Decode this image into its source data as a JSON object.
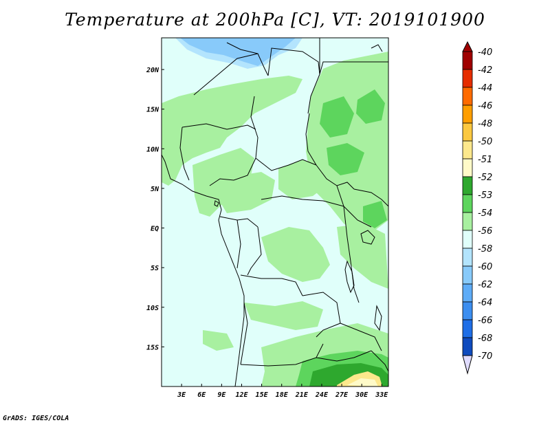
{
  "title": "Temperature at 200hPa [C], VT: 2019101900",
  "footer": "GrADS: IGES/COLA",
  "chart_data": {
    "type": "heatmap",
    "title": "Temperature at 200hPa [C], VT: 2019101900",
    "variable": "Temperature",
    "level": "200hPa",
    "units": "C",
    "valid_time": "2019101900",
    "lon_range": [
      0,
      34
    ],
    "lat_range": [
      -20,
      24
    ],
    "x_ticks": [
      {
        "lon": 3,
        "label": "3E"
      },
      {
        "lon": 6,
        "label": "6E"
      },
      {
        "lon": 9,
        "label": "9E"
      },
      {
        "lon": 12,
        "label": "12E"
      },
      {
        "lon": 15,
        "label": "15E"
      },
      {
        "lon": 18,
        "label": "18E"
      },
      {
        "lon": 21,
        "label": "21E"
      },
      {
        "lon": 24,
        "label": "24E"
      },
      {
        "lon": 27,
        "label": "27E"
      },
      {
        "lon": 30,
        "label": "30E"
      },
      {
        "lon": 33,
        "label": "33E"
      }
    ],
    "y_ticks": [
      {
        "lat": 20,
        "label": "20N"
      },
      {
        "lat": 15,
        "label": "15N"
      },
      {
        "lat": 10,
        "label": "10N"
      },
      {
        "lat": 5,
        "label": "5N"
      },
      {
        "lat": 0,
        "label": "EQ"
      },
      {
        "lat": -5,
        "label": "5S"
      },
      {
        "lat": -10,
        "label": "10S"
      },
      {
        "lat": -15,
        "label": "15S"
      }
    ],
    "colorbar": [
      {
        "label": "-40",
        "color": "#a00000"
      },
      {
        "label": "-42",
        "color": "#e62d00"
      },
      {
        "label": "-44",
        "color": "#ff6b00"
      },
      {
        "label": "-46",
        "color": "#ff9e00"
      },
      {
        "label": "-48",
        "color": "#fbc840"
      },
      {
        "label": "-50",
        "color": "#fde88c"
      },
      {
        "label": "-51",
        "color": "#fffac8"
      },
      {
        "label": "-52",
        "color": "#2ea82e"
      },
      {
        "label": "-53",
        "color": "#5dd55d"
      },
      {
        "label": "-54",
        "color": "#a8f0a0"
      },
      {
        "label": "-56",
        "color": "#e0fffa"
      },
      {
        "label": "-58",
        "color": "#b3e4fd"
      },
      {
        "label": "-60",
        "color": "#88cafa"
      },
      {
        "label": "-62",
        "color": "#5eacf7"
      },
      {
        "label": "-64",
        "color": "#3c8ef0"
      },
      {
        "label": "-66",
        "color": "#1e6ee6"
      },
      {
        "label": "-68",
        "color": "#0f4bbe"
      },
      {
        "label": "-70",
        "color": "#0a2a8c"
      }
    ],
    "colorbar_bottom_color": "#e0dcff",
    "fields": [
      {
        "name": "background",
        "label": "-56",
        "color": "#e0fffa"
      },
      {
        "name": "main",
        "label": "-54",
        "color": "#a8f0a0"
      },
      {
        "name": "warm-core",
        "label": "-53",
        "color": "#5dd55d"
      },
      {
        "name": "warmest",
        "label": "-52",
        "color": "#2ea82e"
      },
      {
        "name": "hot-spot",
        "label": "-50",
        "color": "#fde88c"
      },
      {
        "name": "cold-north",
        "label": "-58",
        "color": "#b3e4fd"
      },
      {
        "name": "colder-north",
        "label": "-60",
        "color": "#88cafa"
      }
    ]
  }
}
